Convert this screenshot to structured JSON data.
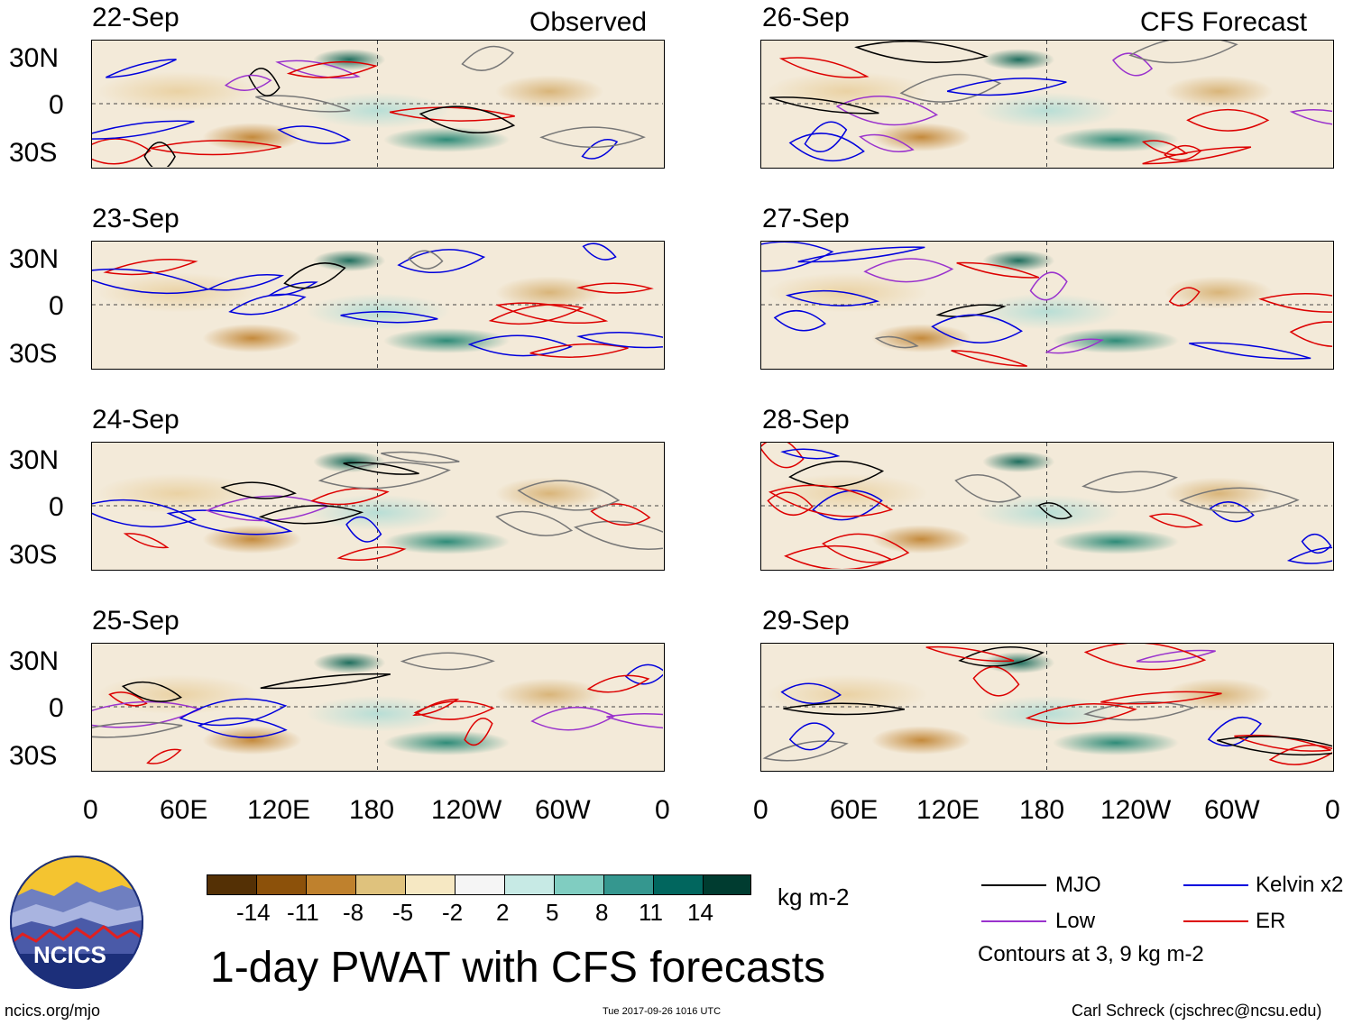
{
  "headers": {
    "left": "Observed",
    "right": "CFS Forecast"
  },
  "panels": [
    {
      "date": "22-Sep",
      "column": "observed"
    },
    {
      "date": "23-Sep",
      "column": "observed"
    },
    {
      "date": "24-Sep",
      "column": "observed"
    },
    {
      "date": "25-Sep",
      "column": "observed"
    },
    {
      "date": "26-Sep",
      "column": "forecast"
    },
    {
      "date": "27-Sep",
      "column": "forecast"
    },
    {
      "date": "28-Sep",
      "column": "forecast"
    },
    {
      "date": "29-Sep",
      "column": "forecast"
    }
  ],
  "y_ticks": [
    "30N",
    "0",
    "30S"
  ],
  "x_ticks": [
    "0",
    "60E",
    "120E",
    "180",
    "120W",
    "60W",
    "0"
  ],
  "colorbar": {
    "labels": [
      "-14",
      "-11",
      "-8",
      "-5",
      "-2",
      "2",
      "5",
      "8",
      "11",
      "14"
    ],
    "unit": "kg m-2",
    "colors": [
      "#543005",
      "#8c510a",
      "#bf812d",
      "#dfc27d",
      "#f6e8c3",
      "#f5f5f5",
      "#c7eae5",
      "#80cdc1",
      "#35978f",
      "#01665e",
      "#003c30"
    ]
  },
  "title": "1-day PWAT with CFS forecasts",
  "legend": {
    "items": [
      {
        "label": "MJO",
        "color": "#000000"
      },
      {
        "label": "Kelvin x2",
        "color": "#0000dd"
      },
      {
        "label": "Low",
        "color": "#9a32cd"
      },
      {
        "label": "ER",
        "color": "#dd0000"
      }
    ],
    "note": "Contours at 3, 9 kg m-2"
  },
  "logo": {
    "text": "NCICS"
  },
  "footer": {
    "left": "ncics.org/mjo",
    "center": "Tue 2017-09-26 1016 UTC",
    "right": "Carl Schreck (cjschrec@ncsu.edu)"
  }
}
